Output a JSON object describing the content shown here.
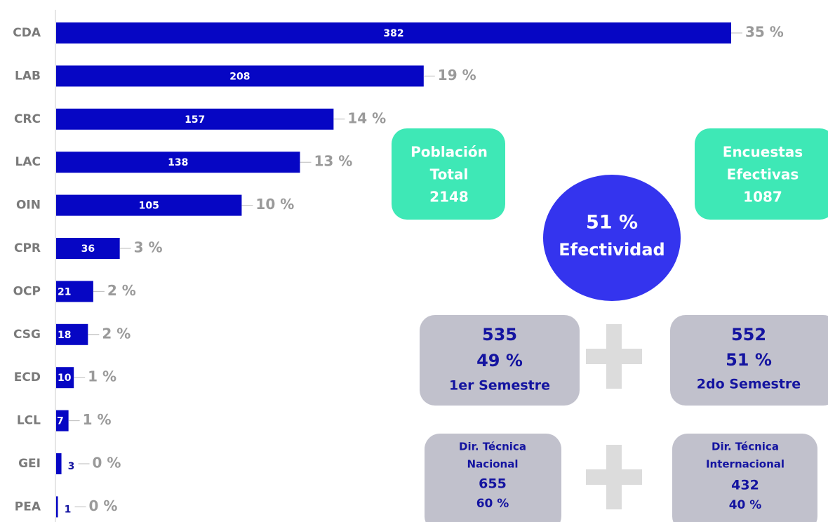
{
  "chart_data": {
    "type": "bar",
    "orientation": "horizontal",
    "categories": [
      "CDA",
      "LAB",
      "CRC",
      "LAC",
      "OIN",
      "CPR",
      "OCP",
      "CSG",
      "ECD",
      "LCL",
      "GEI",
      "PEA"
    ],
    "values": [
      382,
      208,
      157,
      138,
      105,
      36,
      21,
      18,
      10,
      7,
      3,
      1
    ],
    "percent_labels": [
      "35 %",
      "19 %",
      "14 %",
      "13 %",
      "10 %",
      "3 %",
      "2 %",
      "2 %",
      "1 %",
      "1 %",
      "0 %",
      "0 %"
    ],
    "color": "#0606c4"
  },
  "summary": {
    "population": [
      "Población",
      "Total",
      "2148"
    ],
    "surveys": [
      "Encuestas",
      "Efectivas",
      "1087"
    ],
    "effectiveness": [
      "51 %",
      "Efectividad"
    ],
    "semester_1": [
      "535",
      "49 %",
      "1er Semestre"
    ],
    "semester_2": [
      "552",
      "51 %",
      "2do Semestre"
    ],
    "national": [
      "Dir. Técnica",
      "Nacional",
      "655",
      "60 %"
    ],
    "international": [
      "Dir. Técnica",
      "Internacional",
      "432",
      "40 %"
    ]
  }
}
